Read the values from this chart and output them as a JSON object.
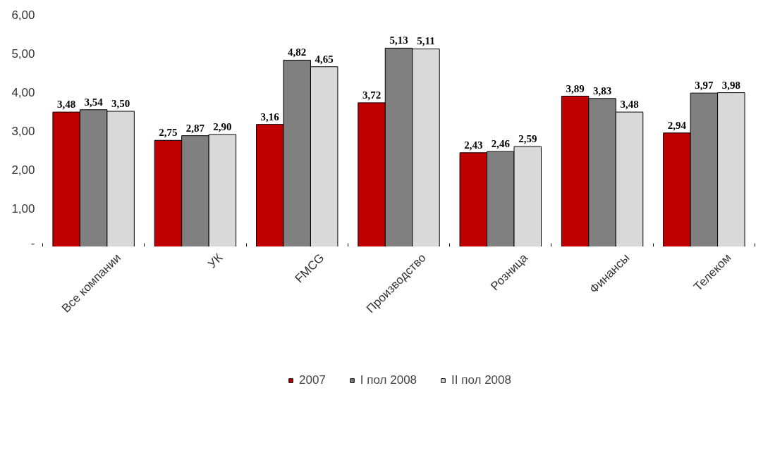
{
  "chart_data": {
    "type": "bar",
    "categories": [
      "Все компании",
      "УК",
      "FMCG",
      "Производство",
      "Розница",
      "Финансы",
      "Телеком"
    ],
    "series": [
      {
        "name": "2007",
        "color": "#c00000",
        "values": [
          3.48,
          2.75,
          3.16,
          3.72,
          2.43,
          3.89,
          2.94
        ],
        "value_labels": [
          "3,48",
          "2,75",
          "3,16",
          "3,72",
          "2,43",
          "3,89",
          "2,94"
        ]
      },
      {
        "name": "I пол 2008",
        "color": "#808080",
        "values": [
          3.54,
          2.87,
          4.82,
          5.13,
          2.46,
          3.83,
          3.97
        ],
        "value_labels": [
          "3,54",
          "2,87",
          "4,82",
          "5,13",
          "2,46",
          "3,83",
          "3,97"
        ]
      },
      {
        "name": "II пол 2008",
        "color": "#d9d9d9",
        "values": [
          3.5,
          2.9,
          4.65,
          5.11,
          2.59,
          3.48,
          3.98
        ],
        "value_labels": [
          "3,50",
          "2,90",
          "4,65",
          "5,11",
          "2,59",
          "3,48",
          "3,98"
        ]
      }
    ],
    "ylim": [
      0,
      6
    ],
    "yticks": [
      {
        "value": 0,
        "label": "-"
      },
      {
        "value": 1,
        "label": "1,00"
      },
      {
        "value": 2,
        "label": "2,00"
      },
      {
        "value": 3,
        "label": "3,00"
      },
      {
        "value": 4,
        "label": "4,00"
      },
      {
        "value": 5,
        "label": "5,00"
      },
      {
        "value": 6,
        "label": "6,00"
      }
    ],
    "grid": false,
    "legend": "bottom"
  }
}
